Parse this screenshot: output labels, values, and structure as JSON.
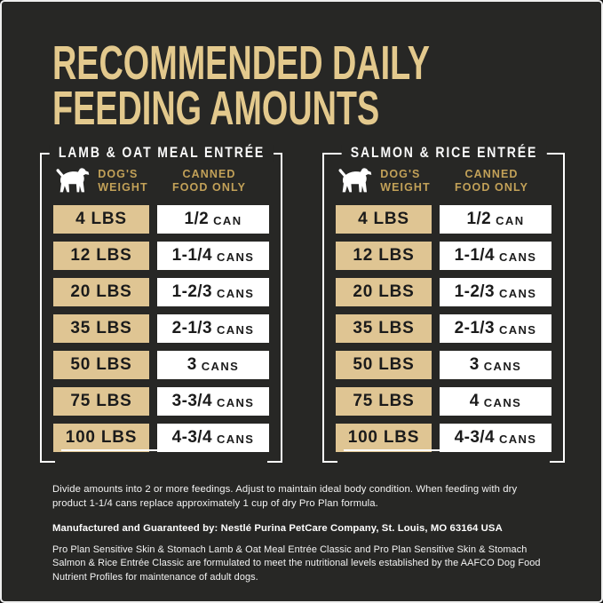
{
  "colors": {
    "background": "#272725",
    "outer_border": "#eeeeee",
    "title_gold": "#e3c98d",
    "header_gold": "#c2a158",
    "weight_box_fill": "#dfc593",
    "box_text": "#1b1b1b",
    "frame_line": "#ffffff"
  },
  "header": {
    "title_line1": "RECOMMENDED DAILY",
    "title_line2": "FEEDING AMOUNTS"
  },
  "tables": [
    {
      "title": "LAMB & OAT MEAL ENTRÉE",
      "icon": "dog-silhouette-icon",
      "weight_header": {
        "line1": "DOG'S",
        "line2": "WEIGHT"
      },
      "canned_header": {
        "line1": "CANNED",
        "line2": "FOOD ONLY"
      },
      "rows": [
        {
          "weight": "4 LBS",
          "amount": "1/2",
          "unit": "CAN"
        },
        {
          "weight": "12 LBS",
          "amount": "1-1/4",
          "unit": "CANS"
        },
        {
          "weight": "20 LBS",
          "amount": "1-2/3",
          "unit": "CANS"
        },
        {
          "weight": "35 LBS",
          "amount": "2-1/3",
          "unit": "CANS"
        },
        {
          "weight": "50 LBS",
          "amount": "3",
          "unit": "CANS"
        },
        {
          "weight": "75 LBS",
          "amount": "3-3/4",
          "unit": "CANS"
        },
        {
          "weight": "100 LBS",
          "amount": "4-3/4",
          "unit": "CANS"
        }
      ]
    },
    {
      "title": "SALMON & RICE ENTRÉE",
      "icon": "dog-silhouette-icon",
      "weight_header": {
        "line1": "DOG'S",
        "line2": "WEIGHT"
      },
      "canned_header": {
        "line1": "CANNED",
        "line2": "FOOD ONLY"
      },
      "rows": [
        {
          "weight": "4 LBS",
          "amount": "1/2",
          "unit": "CAN"
        },
        {
          "weight": "12 LBS",
          "amount": "1-1/4",
          "unit": "CANS"
        },
        {
          "weight": "20 LBS",
          "amount": "1-2/3",
          "unit": "CANS"
        },
        {
          "weight": "35 LBS",
          "amount": "2-1/3",
          "unit": "CANS"
        },
        {
          "weight": "50 LBS",
          "amount": "3",
          "unit": "CANS"
        },
        {
          "weight": "75 LBS",
          "amount": "4",
          "unit": "CANS"
        },
        {
          "weight": "100 LBS",
          "amount": "4-3/4",
          "unit": "CANS"
        }
      ]
    }
  ],
  "footer": {
    "note": "Divide amounts into 2 or more feedings. Adjust to maintain ideal body condition. When feeding with dry product 1-1/4 cans replace approximately 1 cup of dry Pro Plan formula.",
    "manufacturer": "Manufactured and Guaranteed by: Nestlé Purina PetCare Company, St. Louis, MO 63164 USA",
    "aafco": "Pro Plan Sensitive Skin & Stomach Lamb & Oat Meal Entrée Classic and Pro Plan Sensitive Skin & Stomach Salmon & Rice Entrée Classic are formulated to meet the nutritional levels established by the AAFCO Dog Food Nutrient Profiles for maintenance of adult dogs."
  }
}
